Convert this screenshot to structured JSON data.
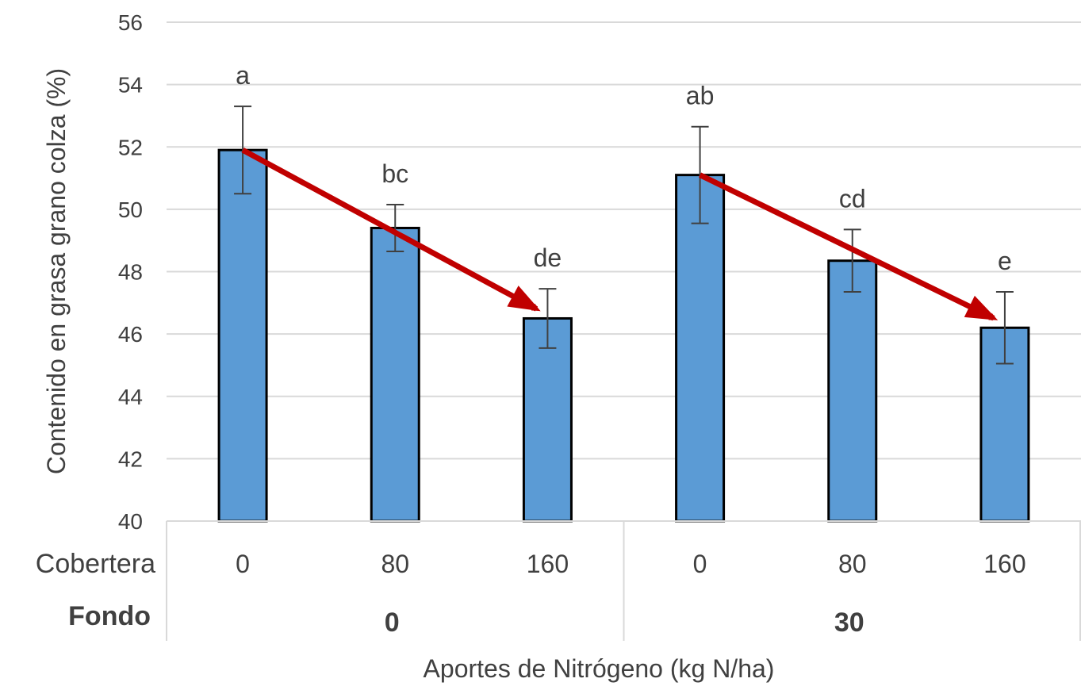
{
  "chart_data": {
    "type": "bar",
    "ylabel": "Contenido en grasa grano colza (%)",
    "xlabel": "Aportes de Nitrógeno (kg N/ha)",
    "ylim": [
      40,
      56
    ],
    "yticks": [
      40,
      42,
      44,
      46,
      48,
      50,
      52,
      54,
      56
    ],
    "grid": true,
    "bar_color": "#5b9bd5",
    "arrow_color": "#c00000",
    "row_titles": {
      "cobertera": "Cobertera",
      "fondo": "Fondo"
    },
    "groups": [
      {
        "label": "0",
        "categories": [
          "0",
          "80",
          "160"
        ]
      },
      {
        "label": "30",
        "categories": [
          "0",
          "80",
          "160"
        ]
      }
    ],
    "values": [
      51.9,
      49.4,
      46.5,
      51.1,
      48.35,
      46.2
    ],
    "error": [
      1.4,
      0.75,
      0.95,
      1.55,
      1.0,
      1.15
    ],
    "significance": [
      "a",
      "bc",
      "de",
      "ab",
      "cd",
      "e"
    ],
    "trend_arrows": [
      {
        "from_bar": 0,
        "to_bar": 2
      },
      {
        "from_bar": 3,
        "to_bar": 5
      }
    ]
  }
}
